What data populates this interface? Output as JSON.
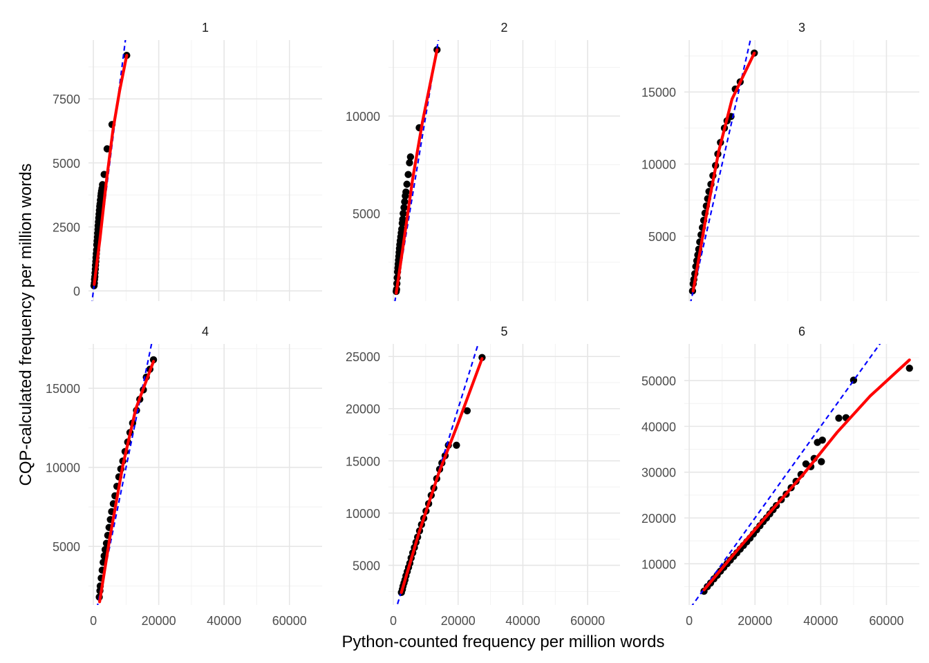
{
  "chart_data": {
    "type": "scatter",
    "xlabel": "Python-counted frequency per million words",
    "ylabel": "CQP-calculated frequency per million words",
    "xlim": [
      -1500,
      70000
    ],
    "x_ticks": [
      0,
      20000,
      40000,
      60000
    ],
    "reference_line": {
      "slope": 1,
      "intercept": 0,
      "color": "#0000ff",
      "style": "dashed"
    },
    "fit_color": "#ff0000",
    "point_color": "#000000",
    "grid": true,
    "panels": [
      {
        "label": "1",
        "ylim": [
          -400,
          9800
        ],
        "y_ticks": [
          0,
          2500,
          5000,
          7500
        ],
        "points": [
          [
            200,
            200
          ],
          [
            300,
            300
          ],
          [
            350,
            450
          ],
          [
            450,
            550
          ],
          [
            500,
            700
          ],
          [
            600,
            850
          ],
          [
            650,
            1000
          ],
          [
            750,
            1150
          ],
          [
            800,
            1300
          ],
          [
            900,
            1450
          ],
          [
            1000,
            1600
          ],
          [
            1050,
            1800
          ],
          [
            1150,
            1950
          ],
          [
            1250,
            2100
          ],
          [
            1300,
            2250
          ],
          [
            1400,
            2400
          ],
          [
            1450,
            2550
          ],
          [
            1550,
            2700
          ],
          [
            1650,
            2850
          ],
          [
            1750,
            3000
          ],
          [
            1850,
            3150
          ],
          [
            1950,
            3300
          ],
          [
            2050,
            3400
          ],
          [
            2150,
            3550
          ],
          [
            2300,
            3700
          ],
          [
            2400,
            3800
          ],
          [
            2500,
            3900
          ],
          [
            2650,
            4000
          ],
          [
            2800,
            4150
          ],
          [
            3300,
            4550
          ],
          [
            4200,
            5550
          ],
          [
            5700,
            6500
          ],
          [
            10200,
            9200
          ]
        ],
        "fit": [
          [
            250,
            250
          ],
          [
            2000,
            2000
          ],
          [
            4000,
            4300
          ],
          [
            6000,
            6300
          ],
          [
            8000,
            7800
          ],
          [
            10200,
            9200
          ]
        ],
        "y_top_clip": 9800
      },
      {
        "label": "2",
        "ylim": [
          500,
          13900
        ],
        "y_ticks": [
          5000,
          10000
        ],
        "points": [
          [
            900,
            1000
          ],
          [
            1000,
            1100
          ],
          [
            1100,
            1400
          ],
          [
            1200,
            1700
          ],
          [
            1300,
            2000
          ],
          [
            1400,
            2200
          ],
          [
            1500,
            2400
          ],
          [
            1600,
            2600
          ],
          [
            1700,
            2800
          ],
          [
            1800,
            3000
          ],
          [
            1900,
            3200
          ],
          [
            2000,
            3400
          ],
          [
            2150,
            3600
          ],
          [
            2300,
            3800
          ],
          [
            2450,
            4000
          ],
          [
            2600,
            4200
          ],
          [
            2750,
            4500
          ],
          [
            2900,
            4700
          ],
          [
            3050,
            5000
          ],
          [
            3300,
            5300
          ],
          [
            3500,
            5600
          ],
          [
            3700,
            5900
          ],
          [
            3900,
            6100
          ],
          [
            4200,
            6500
          ],
          [
            4600,
            7000
          ],
          [
            5000,
            7600
          ],
          [
            5300,
            7900
          ],
          [
            8000,
            9400
          ],
          [
            13500,
            13400
          ]
        ],
        "fit": [
          [
            900,
            900
          ],
          [
            3000,
            3300
          ],
          [
            6000,
            6800
          ],
          [
            9000,
            9700
          ],
          [
            13500,
            13400
          ]
        ]
      },
      {
        "label": "3",
        "ylim": [
          500,
          18600
        ],
        "y_ticks": [
          5000,
          10000,
          15000
        ],
        "points": [
          [
            1000,
            1200
          ],
          [
            1200,
            1700
          ],
          [
            1400,
            2000
          ],
          [
            1700,
            2400
          ],
          [
            2000,
            2900
          ],
          [
            2300,
            3300
          ],
          [
            2600,
            3700
          ],
          [
            2900,
            4100
          ],
          [
            3200,
            4600
          ],
          [
            3600,
            5100
          ],
          [
            4000,
            5600
          ],
          [
            4400,
            6100
          ],
          [
            4800,
            6600
          ],
          [
            5200,
            7100
          ],
          [
            5600,
            7600
          ],
          [
            6000,
            8100
          ],
          [
            6600,
            8600
          ],
          [
            7200,
            9200
          ],
          [
            8000,
            9900
          ],
          [
            8700,
            10700
          ],
          [
            9500,
            11500
          ],
          [
            10700,
            12500
          ],
          [
            11500,
            13000
          ],
          [
            12700,
            13300
          ],
          [
            14000,
            15200
          ],
          [
            15500,
            15700
          ],
          [
            19800,
            17700
          ]
        ],
        "fit": [
          [
            1200,
            1200
          ],
          [
            5000,
            6200
          ],
          [
            9000,
            10900
          ],
          [
            13000,
            14500
          ],
          [
            19800,
            17700
          ]
        ]
      },
      {
        "label": "4",
        "ylim": [
          1300,
          17800
        ],
        "y_ticks": [
          5000,
          10000,
          15000
        ],
        "points": [
          [
            1800,
            1800
          ],
          [
            2000,
            2200
          ],
          [
            2100,
            2500
          ],
          [
            2400,
            3000
          ],
          [
            2700,
            3500
          ],
          [
            3000,
            4000
          ],
          [
            3300,
            4400
          ],
          [
            3600,
            4800
          ],
          [
            4000,
            5200
          ],
          [
            4400,
            5700
          ],
          [
            4800,
            6200
          ],
          [
            5200,
            6700
          ],
          [
            5600,
            7200
          ],
          [
            6100,
            7700
          ],
          [
            6600,
            8200
          ],
          [
            7200,
            8800
          ],
          [
            7800,
            9400
          ],
          [
            8400,
            9900
          ],
          [
            9000,
            10400
          ],
          [
            9700,
            11000
          ],
          [
            10500,
            11600
          ],
          [
            11200,
            12200
          ],
          [
            12000,
            12800
          ],
          [
            13200,
            13600
          ],
          [
            14200,
            14300
          ],
          [
            15300,
            14900
          ],
          [
            16200,
            15700
          ],
          [
            17300,
            16200
          ],
          [
            18400,
            16800
          ]
        ],
        "fit": [
          [
            1900,
            1500
          ],
          [
            5000,
            5500
          ],
          [
            9000,
            10100
          ],
          [
            13000,
            13700
          ],
          [
            18400,
            16700
          ]
        ]
      },
      {
        "label": "5",
        "ylim": [
          1200,
          26200
        ],
        "y_ticks": [
          5000,
          10000,
          15000,
          20000,
          25000
        ],
        "points": [
          [
            2500,
            2400
          ],
          [
            2800,
            2700
          ],
          [
            3000,
            3000
          ],
          [
            3300,
            3300
          ],
          [
            3600,
            3600
          ],
          [
            3900,
            4000
          ],
          [
            4300,
            4400
          ],
          [
            4700,
            4800
          ],
          [
            5100,
            5200
          ],
          [
            5500,
            5700
          ],
          [
            6000,
            6200
          ],
          [
            6500,
            6700
          ],
          [
            7000,
            7200
          ],
          [
            7500,
            7700
          ],
          [
            8100,
            8300
          ],
          [
            8700,
            8900
          ],
          [
            9400,
            9500
          ],
          [
            10100,
            10200
          ],
          [
            10900,
            10900
          ],
          [
            11700,
            11700
          ],
          [
            12500,
            12400
          ],
          [
            13400,
            13300
          ],
          [
            14300,
            14200
          ],
          [
            15000,
            14800
          ],
          [
            16000,
            15500
          ],
          [
            17000,
            16500
          ],
          [
            19500,
            16500
          ],
          [
            22800,
            19800
          ],
          [
            27400,
            24900
          ]
        ],
        "fit": [
          [
            2500,
            2400
          ],
          [
            8000,
            8200
          ],
          [
            14000,
            13800
          ],
          [
            20000,
            18600
          ],
          [
            27400,
            24800
          ]
        ]
      },
      {
        "label": "6",
        "ylim": [
          1000,
          58000
        ],
        "y_ticks": [
          10000,
          20000,
          30000,
          40000,
          50000
        ],
        "points": [
          [
            4500,
            4000
          ],
          [
            5500,
            5000
          ],
          [
            6500,
            5800
          ],
          [
            7500,
            6700
          ],
          [
            8500,
            7500
          ],
          [
            9500,
            8400
          ],
          [
            10500,
            9200
          ],
          [
            11500,
            10000
          ],
          [
            12500,
            10800
          ],
          [
            13500,
            11600
          ],
          [
            14500,
            12400
          ],
          [
            15500,
            13200
          ],
          [
            16500,
            14000
          ],
          [
            17500,
            14800
          ],
          [
            18500,
            15600
          ],
          [
            19500,
            16500
          ],
          [
            20500,
            17400
          ],
          [
            21500,
            18300
          ],
          [
            22500,
            19200
          ],
          [
            23500,
            20000
          ],
          [
            24500,
            20900
          ],
          [
            25500,
            21800
          ],
          [
            26500,
            22700
          ],
          [
            28000,
            24000
          ],
          [
            29500,
            25200
          ],
          [
            31000,
            26600
          ],
          [
            32500,
            28000
          ],
          [
            34000,
            29500
          ],
          [
            35500,
            31800
          ],
          [
            37000,
            31200
          ],
          [
            38000,
            33000
          ],
          [
            39000,
            36500
          ],
          [
            40200,
            32300
          ],
          [
            40500,
            37000
          ],
          [
            45500,
            41800
          ],
          [
            47700,
            41900
          ],
          [
            50000,
            50100
          ],
          [
            67000,
            52700
          ]
        ],
        "fit": [
          [
            4500,
            4300
          ],
          [
            15000,
            13300
          ],
          [
            25000,
            21600
          ],
          [
            35000,
            29800
          ],
          [
            45000,
            38700
          ],
          [
            55000,
            46600
          ],
          [
            67000,
            54500
          ]
        ]
      }
    ]
  }
}
